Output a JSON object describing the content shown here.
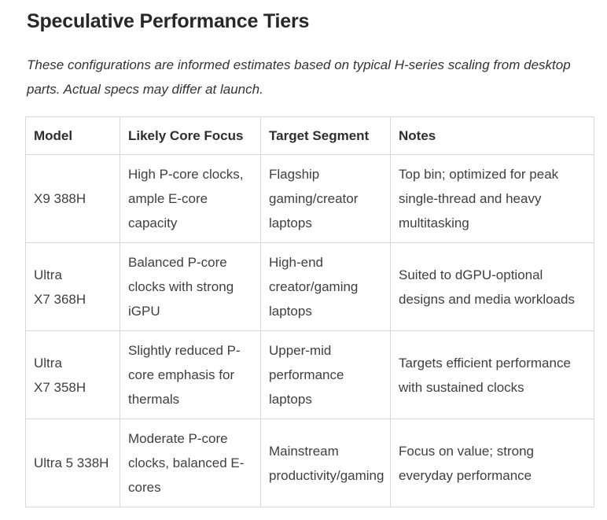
{
  "page": {
    "heading": "Speculative Performance Tiers",
    "disclaimer": "These configurations are informed estimates based on typical H-series scaling from desktop parts. Actual specs may differ at launch."
  },
  "table": {
    "headers": {
      "model": "Model",
      "core_focus": "Likely Core Focus",
      "target_segment": "Target Segment",
      "notes": "Notes"
    },
    "rows": [
      {
        "model": "X9 388H",
        "core_focus": "High P-core clocks, ample E-core capacity",
        "target_segment": "Flagship gaming/creator laptops",
        "notes": "Top bin; optimized for peak single-thread and heavy multitasking"
      },
      {
        "model": "Ultra X7 368H",
        "core_focus": "Balanced P-core clocks with strong iGPU",
        "target_segment": "High-end creator/gaming laptops",
        "notes": "Suited to dGPU-optional designs and media workloads"
      },
      {
        "model": "Ultra X7 358H",
        "core_focus": "Slightly reduced P-core emphasis for thermals",
        "target_segment": "Upper-mid performance laptops",
        "notes": "Targets efficient performance with sustained clocks"
      },
      {
        "model": "Ultra 5 338H",
        "core_focus": "Moderate P-core clocks, balanced E-cores",
        "target_segment": "Mainstream productivity/gaming",
        "notes": "Focus on value; strong everyday performance"
      }
    ]
  },
  "colors": {
    "table_border": "#d9d9d9",
    "heading_text": "#272727",
    "body_text": "#3f3f3f",
    "background": "#ffffff"
  }
}
